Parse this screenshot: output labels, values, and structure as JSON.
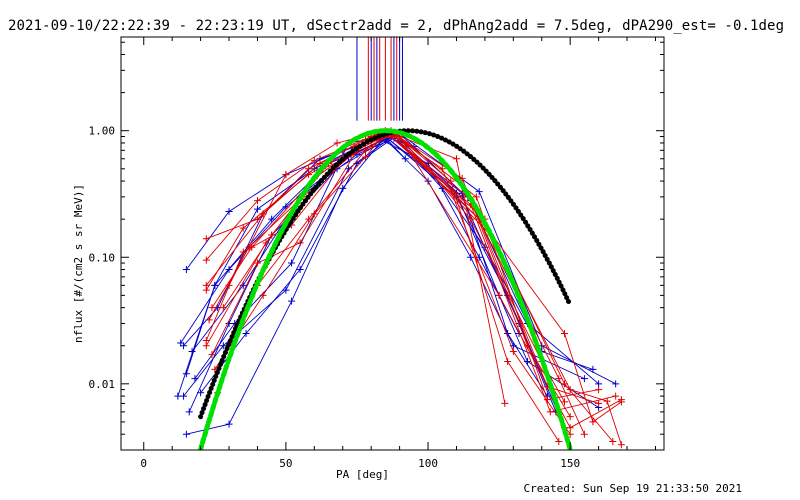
{
  "header": {
    "title": "2021-09-10/22:22:39 - 22:23:19 UT, dSectr2add = 2, dPhAng2add = 7.5deg, dPA290_est= -0.1deg"
  },
  "footer": {
    "created": "Created: Sun Sep 19 21:33:50 2021"
  },
  "colors": {
    "red": "#e00000",
    "blue": "#0000cc",
    "black": "#000000",
    "green": "#00e000"
  },
  "chart_data": {
    "type": "line",
    "xlabel": "PA [deg]",
    "ylabel": "nflux [#/(cm2 s sr MeV)]",
    "xlim": [
      -8,
      183
    ],
    "ylim": [
      0.003,
      5.5
    ],
    "yscale": "log",
    "x_ticks": [
      0,
      50,
      100,
      150
    ],
    "x_tick_labels": [
      "0",
      "50",
      "100",
      "150"
    ],
    "y_ticks": [
      0.01,
      0.1,
      1.0
    ],
    "y_tick_labels": [
      "0.01",
      "0.10",
      "1.00"
    ],
    "grid": false,
    "vertical_markers": {
      "blue_x": [
        75,
        80,
        82,
        88,
        90,
        91
      ],
      "red_x": [
        79,
        81,
        83,
        85,
        87,
        89
      ],
      "y_from": 1.2,
      "y_to": 5.5
    },
    "fit_curves": [
      {
        "color": "black",
        "style": "dotted",
        "center": 93,
        "peak": 1.0,
        "width": 32,
        "x_start": 20,
        "x_end": 150
      },
      {
        "color": "green",
        "style": "dashed",
        "center": 85,
        "peak": 1.0,
        "width": 27,
        "x_start": 20,
        "x_end": 150
      }
    ],
    "series": [
      {
        "color": "blue",
        "x": [
          13,
          30,
          50,
          72,
          85,
          92
        ],
        "y": [
          0.021,
          0.08,
          0.25,
          0.62,
          0.88,
          0.6
        ]
      },
      {
        "color": "blue",
        "x": [
          15,
          30,
          50,
          70,
          85,
          95
        ],
        "y": [
          0.08,
          0.23,
          0.45,
          0.7,
          0.9,
          0.75
        ]
      },
      {
        "color": "blue",
        "x": [
          15,
          25,
          45,
          65,
          85,
          100,
          115,
          130,
          155
        ],
        "y": [
          0.012,
          0.06,
          0.2,
          0.55,
          0.85,
          0.4,
          0.1,
          0.02,
          0.011
        ]
      },
      {
        "color": "blue",
        "x": [
          14,
          28,
          50,
          72,
          88,
          105,
          120,
          140,
          158
        ],
        "y": [
          0.008,
          0.02,
          0.055,
          0.5,
          0.92,
          0.35,
          0.12,
          0.018,
          0.013
        ]
      },
      {
        "color": "blue",
        "x": [
          15,
          30,
          52,
          70,
          85,
          110,
          125,
          135,
          160
        ],
        "y": [
          0.004,
          0.0048,
          0.045,
          0.35,
          0.9,
          0.32,
          0.05,
          0.015,
          0.0065
        ]
      },
      {
        "color": "blue",
        "x": [
          17,
          35,
          55,
          75,
          88,
          112,
          128,
          142
        ],
        "y": [
          0.018,
          0.06,
          0.3,
          0.65,
          0.87,
          0.32,
          0.025,
          0.008
        ]
      },
      {
        "color": "blue",
        "x": [
          12,
          25,
          40,
          60,
          82,
          100,
          118,
          132
        ],
        "y": [
          0.008,
          0.06,
          0.24,
          0.5,
          0.88,
          0.55,
          0.1,
          0.025
        ]
      },
      {
        "color": "blue",
        "x": [
          16,
          30,
          45,
          68,
          88,
          112,
          132,
          145
        ],
        "y": [
          0.006,
          0.03,
          0.15,
          0.5,
          0.93,
          0.3,
          0.03,
          0.006
        ]
      },
      {
        "color": "blue",
        "x": [
          14,
          26,
          42,
          62,
          85,
          110,
          128,
          148
        ],
        "y": [
          0.02,
          0.04,
          0.22,
          0.6,
          0.9,
          0.3,
          0.05,
          0.0045
        ]
      },
      {
        "color": "blue",
        "x": [
          18,
          32,
          52,
          72,
          90,
          115,
          135,
          160
        ],
        "y": [
          0.011,
          0.03,
          0.09,
          0.8,
          0.95,
          0.28,
          0.03,
          0.01
        ]
      },
      {
        "color": "blue",
        "x": [
          20,
          36,
          55,
          75,
          90,
          118,
          140,
          166
        ],
        "y": [
          0.0085,
          0.025,
          0.08,
          0.55,
          0.95,
          0.33,
          0.02,
          0.01
        ]
      },
      {
        "color": "red",
        "x": [
          22,
          40,
          58,
          78,
          85,
          110,
          127
        ],
        "y": [
          0.14,
          0.2,
          0.5,
          0.85,
          1.0,
          0.6,
          0.007
        ]
      },
      {
        "color": "red",
        "x": [
          22,
          40,
          60,
          80,
          86,
          105,
          130,
          150
        ],
        "y": [
          0.095,
          0.28,
          0.58,
          0.9,
          0.98,
          0.5,
          0.018,
          0.004
        ]
      },
      {
        "color": "red",
        "x": [
          22,
          42,
          62,
          82,
          87,
          108,
          128,
          146
        ],
        "y": [
          0.06,
          0.22,
          0.55,
          0.95,
          1.0,
          0.4,
          0.015,
          0.0035
        ]
      },
      {
        "color": "red",
        "x": [
          22,
          35,
          58,
          80,
          88,
          112,
          135,
          150
        ],
        "y": [
          0.055,
          0.17,
          0.45,
          0.85,
          0.95,
          0.42,
          0.02,
          0.0055
        ]
      },
      {
        "color": "red",
        "x": [
          24,
          38,
          60,
          80,
          90,
          115,
          140,
          148
        ],
        "y": [
          0.04,
          0.12,
          0.42,
          0.88,
          0.9,
          0.2,
          0.015,
          0.0072
        ]
      },
      {
        "color": "red",
        "x": [
          23,
          37,
          56,
          78,
          89,
          117,
          142,
          160
        ],
        "y": [
          0.032,
          0.12,
          0.3,
          0.8,
          0.92,
          0.3,
          0.0075,
          0.009
        ]
      },
      {
        "color": "red",
        "x": [
          22,
          35,
          52,
          74,
          86,
          120,
          148,
          165
        ],
        "y": [
          0.022,
          0.11,
          0.18,
          0.75,
          0.93,
          0.2,
          0.01,
          0.0035
        ]
      },
      {
        "color": "red",
        "x": [
          24,
          40,
          55,
          75,
          86,
          115,
          143,
          166
        ],
        "y": [
          0.017,
          0.09,
          0.13,
          0.7,
          0.94,
          0.26,
          0.006,
          0.008
        ]
      },
      {
        "color": "red",
        "x": [
          26,
          40,
          58,
          78,
          86,
          118,
          142,
          160
        ],
        "y": [
          0.0085,
          0.06,
          0.2,
          0.7,
          0.95,
          0.2,
          0.0095,
          0.007
        ]
      },
      {
        "color": "red",
        "x": [
          25,
          42,
          60,
          78,
          85,
          114,
          146,
          155
        ],
        "y": [
          0.013,
          0.05,
          0.22,
          0.62,
          0.97,
          0.3,
          0.011,
          0.004
        ]
      },
      {
        "color": "red",
        "x": [
          30,
          50,
          68,
          85,
          90,
          125,
          150,
          168
        ],
        "y": [
          0.06,
          0.45,
          0.8,
          1.0,
          0.9,
          0.05,
          0.0045,
          0.0075
        ]
      },
      {
        "color": "red",
        "x": [
          28,
          45,
          65,
          82,
          88,
          122,
          150,
          163,
          168
        ],
        "y": [
          0.04,
          0.15,
          0.55,
          0.9,
          0.92,
          0.15,
          0.009,
          0.0073,
          0.0033
        ]
      },
      {
        "color": "red",
        "x": [
          22,
          43,
          63,
          80,
          88,
          120,
          148,
          158,
          168
        ],
        "y": [
          0.02,
          0.13,
          0.5,
          0.75,
          0.97,
          0.18,
          0.025,
          0.005,
          0.0072
        ]
      }
    ]
  }
}
